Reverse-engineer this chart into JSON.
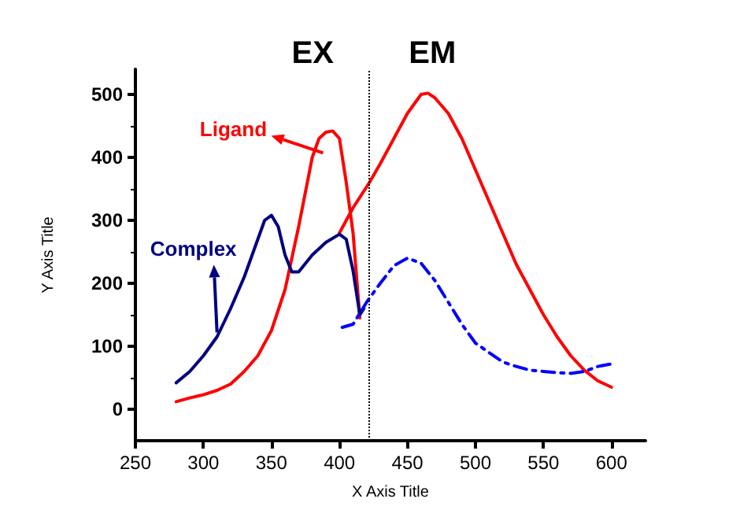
{
  "chart_data": {
    "type": "line",
    "xlabel": "X Axis Title",
    "ylabel": "Y Axis Title",
    "xlim": [
      250,
      625
    ],
    "xticks": [
      250,
      300,
      350,
      400,
      450,
      500,
      550,
      600
    ],
    "ylim": [
      -50,
      540
    ],
    "yticks": [
      0,
      100,
      200,
      300,
      400,
      500
    ],
    "grid": false,
    "marker": "none",
    "series": [
      {
        "color": "#ff0000",
        "line_style": "solid",
        "x": [
          280,
          290,
          300,
          310,
          320,
          330,
          340,
          350,
          360,
          370,
          380,
          385,
          390,
          395,
          400,
          405,
          410,
          415
        ],
        "values": [
          12,
          18,
          23,
          30,
          40,
          60,
          85,
          125,
          190,
          290,
          400,
          430,
          440,
          442,
          430,
          360,
          280,
          145
        ]
      },
      {
        "color": "#ff0000",
        "line_style": "solid",
        "x": [
          400,
          410,
          422,
          430,
          440,
          450,
          460,
          465,
          470,
          480,
          490,
          500,
          510,
          520,
          530,
          540,
          550,
          560,
          570,
          580,
          590,
          600
        ],
        "values": [
          280,
          320,
          360,
          390,
          430,
          470,
          500,
          502,
          495,
          470,
          430,
          380,
          330,
          280,
          230,
          190,
          150,
          115,
          85,
          62,
          45,
          35
        ]
      },
      {
        "color": "#000080",
        "line_style": "solid",
        "x": [
          280,
          290,
          300,
          310,
          320,
          330,
          340,
          345,
          350,
          355,
          360,
          365,
          370,
          380,
          390,
          400,
          405,
          410,
          415,
          418
        ],
        "values": [
          42,
          60,
          85,
          115,
          160,
          210,
          270,
          300,
          308,
          290,
          245,
          218,
          218,
          245,
          265,
          278,
          270,
          220,
          150,
          160
        ]
      },
      {
        "color": "#0000ff",
        "line_style": "dashdot",
        "x": [
          402,
          410,
          420,
          430,
          440,
          450,
          460,
          470,
          480,
          490,
          500,
          510,
          520,
          530,
          540,
          550,
          560,
          570,
          580,
          590,
          600
        ],
        "values": [
          130,
          135,
          170,
          200,
          228,
          240,
          232,
          205,
          170,
          135,
          105,
          90,
          75,
          68,
          62,
          60,
          58,
          57,
          60,
          68,
          72
        ]
      }
    ],
    "ref_lines": [
      {
        "axis": "x",
        "value": 422,
        "line_style": "dotted",
        "color": "#000000"
      }
    ],
    "annotations": [
      "EX",
      "EM",
      {
        "text": "Ligand",
        "x": 388,
        "y": 407
      },
      {
        "text": "Complex",
        "x": 310,
        "y": 122
      }
    ]
  }
}
